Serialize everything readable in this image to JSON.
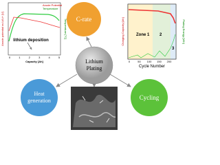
{
  "center": {
    "lines": [
      "Lithium",
      "Plating"
    ]
  },
  "nodes": [
    {
      "lines": [
        "C-rate"
      ]
    },
    {
      "lines": [
        "Cycling"
      ]
    },
    {
      "lines": [
        "Heat",
        "generation"
      ]
    }
  ],
  "left_plot": {
    "y_label": "Anode potential vs Li/Li+ [V]",
    "y2_label": "Temperature [°C]",
    "x_label": "Capacity [Ah]",
    "legend": [
      "Anode Potential",
      "Temperature"
    ],
    "annotation": "lithium deposition",
    "xticks": [
      "0",
      "1",
      "2",
      "3",
      "4",
      "5"
    ]
  },
  "right_plot": {
    "y_label": "Charging Capacity [Ah]",
    "y2_label": "Plating Energy [Wh]",
    "x_label": "Cycle Number",
    "zones": [
      "Zone 1",
      "2",
      "3"
    ],
    "xticks": [
      "0",
      "50",
      "100",
      "150",
      "200"
    ]
  }
}
